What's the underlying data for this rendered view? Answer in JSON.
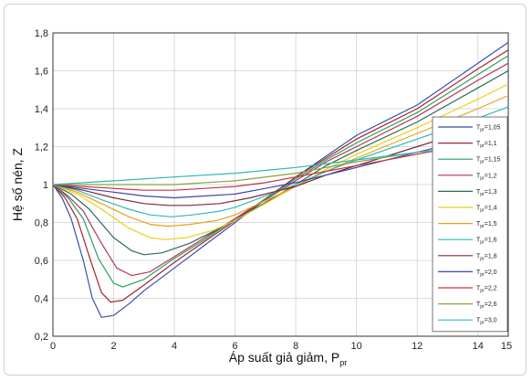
{
  "chart_data": {
    "type": "line",
    "xlabel": "Áp suất giả giảm, P",
    "xlabel_sub": "pr",
    "ylabel": "Hệ số nén, Z",
    "xlim": [
      0,
      15
    ],
    "ylim": [
      0.2,
      1.8
    ],
    "xticks": [
      "0",
      "2",
      "4",
      "6",
      "8",
      "10",
      "12",
      "14",
      "15"
    ],
    "yticks": [
      "0,2",
      "0,4",
      "0,6",
      "0,8",
      "1",
      "1,2",
      "1,4",
      "1,6",
      "1,8"
    ],
    "grid": true,
    "legend_position": "right",
    "series": [
      {
        "name": "T",
        "sub": "pr",
        "value": "=1,05",
        "color": "#3a4ea8",
        "points": [
          [
            0,
            1.0
          ],
          [
            0.3,
            0.93
          ],
          [
            0.6,
            0.82
          ],
          [
            1.0,
            0.6
          ],
          [
            1.3,
            0.4
          ],
          [
            1.6,
            0.3
          ],
          [
            2.0,
            0.31
          ],
          [
            2.5,
            0.37
          ],
          [
            3.0,
            0.44
          ],
          [
            4.0,
            0.56
          ],
          [
            5.0,
            0.68
          ],
          [
            6.0,
            0.8
          ],
          [
            8.0,
            1.04
          ],
          [
            9.0,
            1.15
          ],
          [
            10.0,
            1.26
          ],
          [
            12.0,
            1.42
          ],
          [
            14.0,
            1.64
          ],
          [
            15.0,
            1.75
          ]
        ]
      },
      {
        "name": "T",
        "sub": "pr",
        "value": "=1,1",
        "color": "#a02430",
        "points": [
          [
            0,
            1.0
          ],
          [
            0.4,
            0.93
          ],
          [
            0.8,
            0.82
          ],
          [
            1.2,
            0.62
          ],
          [
            1.6,
            0.43
          ],
          [
            1.9,
            0.38
          ],
          [
            2.3,
            0.39
          ],
          [
            3.0,
            0.47
          ],
          [
            4.0,
            0.59
          ],
          [
            5.0,
            0.7
          ],
          [
            6.0,
            0.81
          ],
          [
            8.0,
            1.04
          ],
          [
            9.0,
            1.14
          ],
          [
            10.0,
            1.24
          ],
          [
            12.0,
            1.4
          ],
          [
            14.0,
            1.61
          ],
          [
            15.0,
            1.71
          ]
        ]
      },
      {
        "name": "T",
        "sub": "pr",
        "value": "=1,15",
        "color": "#2a9e5c",
        "points": [
          [
            0,
            1.0
          ],
          [
            0.5,
            0.93
          ],
          [
            1.0,
            0.82
          ],
          [
            1.5,
            0.61
          ],
          [
            2.0,
            0.48
          ],
          [
            2.3,
            0.46
          ],
          [
            3.0,
            0.5
          ],
          [
            4.0,
            0.61
          ],
          [
            5.0,
            0.71
          ],
          [
            6.0,
            0.82
          ],
          [
            8.0,
            1.03
          ],
          [
            9.0,
            1.13
          ],
          [
            10.0,
            1.22
          ],
          [
            12.0,
            1.38
          ],
          [
            14.0,
            1.58
          ],
          [
            15.0,
            1.68
          ]
        ]
      },
      {
        "name": "T",
        "sub": "pr",
        "value": "=1,2",
        "color": "#b1355c",
        "points": [
          [
            0,
            1.0
          ],
          [
            0.5,
            0.94
          ],
          [
            1.0,
            0.86
          ],
          [
            1.6,
            0.69
          ],
          [
            2.1,
            0.56
          ],
          [
            2.6,
            0.52
          ],
          [
            3.2,
            0.54
          ],
          [
            4.0,
            0.62
          ],
          [
            5.0,
            0.72
          ],
          [
            6.0,
            0.82
          ],
          [
            8.0,
            1.02
          ],
          [
            9.0,
            1.12
          ],
          [
            10.0,
            1.2
          ],
          [
            12.0,
            1.36
          ],
          [
            14.0,
            1.55
          ],
          [
            15.0,
            1.64
          ]
        ]
      },
      {
        "name": "T",
        "sub": "pr",
        "value": "=1,3",
        "color": "#2b6b5a",
        "points": [
          [
            0,
            1.0
          ],
          [
            0.6,
            0.95
          ],
          [
            1.2,
            0.87
          ],
          [
            2.0,
            0.72
          ],
          [
            2.6,
            0.65
          ],
          [
            3.0,
            0.63
          ],
          [
            3.6,
            0.64
          ],
          [
            4.5,
            0.69
          ],
          [
            5.5,
            0.77
          ],
          [
            6.0,
            0.81
          ],
          [
            8.0,
            1.0
          ],
          [
            9.0,
            1.1
          ],
          [
            10.0,
            1.18
          ],
          [
            12.0,
            1.33
          ],
          [
            14.0,
            1.51
          ],
          [
            15.0,
            1.6
          ]
        ]
      },
      {
        "name": "T",
        "sub": "pr",
        "value": "=1,4",
        "color": "#e8cf1e",
        "points": [
          [
            0,
            1.0
          ],
          [
            0.8,
            0.95
          ],
          [
            1.6,
            0.87
          ],
          [
            2.5,
            0.77
          ],
          [
            3.2,
            0.72
          ],
          [
            3.7,
            0.71
          ],
          [
            4.4,
            0.72
          ],
          [
            5.3,
            0.76
          ],
          [
            6.0,
            0.81
          ],
          [
            8.0,
            0.99
          ],
          [
            9.0,
            1.08
          ],
          [
            10.0,
            1.16
          ],
          [
            12.0,
            1.3
          ],
          [
            14.0,
            1.45
          ],
          [
            15.0,
            1.53
          ]
        ]
      },
      {
        "name": "T",
        "sub": "pr",
        "value": "=1,5",
        "color": "#e8a21e",
        "points": [
          [
            0,
            1.0
          ],
          [
            0.8,
            0.96
          ],
          [
            1.6,
            0.9
          ],
          [
            2.5,
            0.83
          ],
          [
            3.2,
            0.79
          ],
          [
            3.8,
            0.78
          ],
          [
            4.5,
            0.79
          ],
          [
            5.4,
            0.81
          ],
          [
            6.0,
            0.84
          ],
          [
            8.0,
            0.99
          ],
          [
            9.0,
            1.07
          ],
          [
            10.0,
            1.14
          ],
          [
            12.0,
            1.27
          ],
          [
            14.0,
            1.4
          ],
          [
            15.0,
            1.47
          ]
        ]
      },
      {
        "name": "T",
        "sub": "pr",
        "value": "=1,6",
        "color": "#33b8ba",
        "points": [
          [
            0,
            1.0
          ],
          [
            0.8,
            0.97
          ],
          [
            1.6,
            0.92
          ],
          [
            2.5,
            0.87
          ],
          [
            3.2,
            0.84
          ],
          [
            3.9,
            0.83
          ],
          [
            4.6,
            0.84
          ],
          [
            5.5,
            0.86
          ],
          [
            6.0,
            0.88
          ],
          [
            8.0,
            1.0
          ],
          [
            9.0,
            1.07
          ],
          [
            10.0,
            1.13
          ],
          [
            12.0,
            1.24
          ],
          [
            14.0,
            1.35
          ],
          [
            15.0,
            1.41
          ]
        ]
      },
      {
        "name": "T",
        "sub": "pr",
        "value": "=1,8",
        "color": "#7a2a3a",
        "points": [
          [
            0,
            1.0
          ],
          [
            1.0,
            0.97
          ],
          [
            2.0,
            0.93
          ],
          [
            3.0,
            0.9
          ],
          [
            3.8,
            0.89
          ],
          [
            4.5,
            0.89
          ],
          [
            5.5,
            0.9
          ],
          [
            6.5,
            0.93
          ],
          [
            8.0,
            0.99
          ],
          [
            9.0,
            1.05
          ],
          [
            10.0,
            1.1
          ],
          [
            12.0,
            1.2
          ],
          [
            14.0,
            1.3
          ],
          [
            15.0,
            1.35
          ]
        ]
      },
      {
        "name": "T",
        "sub": "pr",
        "value": "=2,0",
        "color": "#3c47a6",
        "points": [
          [
            0,
            1.0
          ],
          [
            1.0,
            0.98
          ],
          [
            2.0,
            0.96
          ],
          [
            3.0,
            0.94
          ],
          [
            4.0,
            0.93
          ],
          [
            5.0,
            0.94
          ],
          [
            6.0,
            0.95
          ],
          [
            7.0,
            0.98
          ],
          [
            8.0,
            1.01
          ],
          [
            9.0,
            1.05
          ],
          [
            10.0,
            1.09
          ],
          [
            12.0,
            1.17
          ],
          [
            14.0,
            1.25
          ],
          [
            15.0,
            1.29
          ]
        ]
      },
      {
        "name": "T",
        "sub": "pr",
        "value": "=2,2",
        "color": "#c4344a",
        "points": [
          [
            0,
            1.0
          ],
          [
            1.0,
            0.99
          ],
          [
            2.0,
            0.98
          ],
          [
            3.0,
            0.97
          ],
          [
            4.0,
            0.97
          ],
          [
            5.0,
            0.98
          ],
          [
            6.0,
            0.99
          ],
          [
            7.0,
            1.01
          ],
          [
            8.0,
            1.04
          ],
          [
            9.0,
            1.07
          ],
          [
            10.0,
            1.1
          ],
          [
            12.0,
            1.16
          ],
          [
            14.0,
            1.22
          ],
          [
            15.0,
            1.25
          ]
        ]
      },
      {
        "name": "T",
        "sub": "pr",
        "value": "=2,6",
        "color": "#8aa23a",
        "points": [
          [
            0,
            1.0
          ],
          [
            2.0,
            1.0
          ],
          [
            4.0,
            1.0
          ],
          [
            6.0,
            1.02
          ],
          [
            8.0,
            1.06
          ],
          [
            9.0,
            1.09
          ],
          [
            10.0,
            1.12
          ],
          [
            12.0,
            1.17
          ],
          [
            14.0,
            1.21
          ],
          [
            15.0,
            1.23
          ]
        ]
      },
      {
        "name": "T",
        "sub": "pr",
        "value": "=3,0",
        "color": "#2fb6b8",
        "points": [
          [
            0,
            1.0
          ],
          [
            2.0,
            1.02
          ],
          [
            4.0,
            1.04
          ],
          [
            6.0,
            1.06
          ],
          [
            8.0,
            1.09
          ],
          [
            10.0,
            1.13
          ],
          [
            12.0,
            1.17
          ],
          [
            14.0,
            1.2
          ],
          [
            15.0,
            1.21
          ]
        ]
      }
    ]
  }
}
